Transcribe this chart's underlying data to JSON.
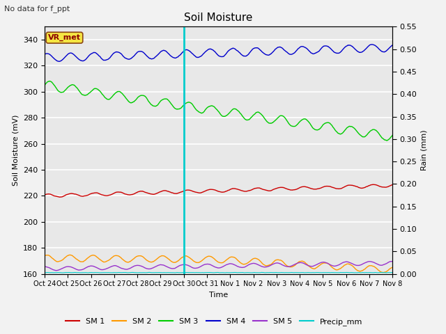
{
  "title": "Soil Moisture",
  "top_left_text": "No data for f_ppt",
  "vr_met_label": "VR_met",
  "ylabel_left": "Soil Moisture (mV)",
  "ylabel_right": "Rain (mm)",
  "xlabel": "Time",
  "ylim_left": [
    160,
    350
  ],
  "ylim_right": [
    0.0,
    0.55
  ],
  "yticks_left": [
    160,
    180,
    200,
    220,
    240,
    260,
    280,
    300,
    320,
    340
  ],
  "yticks_right": [
    0.0,
    0.05,
    0.1,
    0.15,
    0.2,
    0.25,
    0.3,
    0.35,
    0.4,
    0.45,
    0.5,
    0.55
  ],
  "background_color": "#e8e8e8",
  "fig_background": "#f2f2f2",
  "grid_color": "#ffffff",
  "series_colors": {
    "SM1": "#cc0000",
    "SM2": "#ff9900",
    "SM3": "#00cc00",
    "SM4": "#0000cc",
    "SM5": "#9933cc",
    "Precip": "#00cccc"
  },
  "vline_color": "#00cccc",
  "xtick_labels": [
    "Oct 24",
    "Oct 25",
    "Oct 26",
    "Oct 27",
    "Oct 28",
    "Oct 29",
    "Oct 30",
    "Oct 31",
    "Nov 1",
    "Nov 2",
    "Nov 3",
    "Nov 4",
    "Nov 5",
    "Nov 6",
    "Nov 7",
    "Nov 8"
  ],
  "legend_labels": [
    "SM 1",
    "SM 2",
    "SM 3",
    "SM 4",
    "SM 5",
    "Precip_mm"
  ],
  "legend_colors": [
    "#cc0000",
    "#ff9900",
    "#00cc00",
    "#0000cc",
    "#9933cc",
    "#00cccc"
  ]
}
